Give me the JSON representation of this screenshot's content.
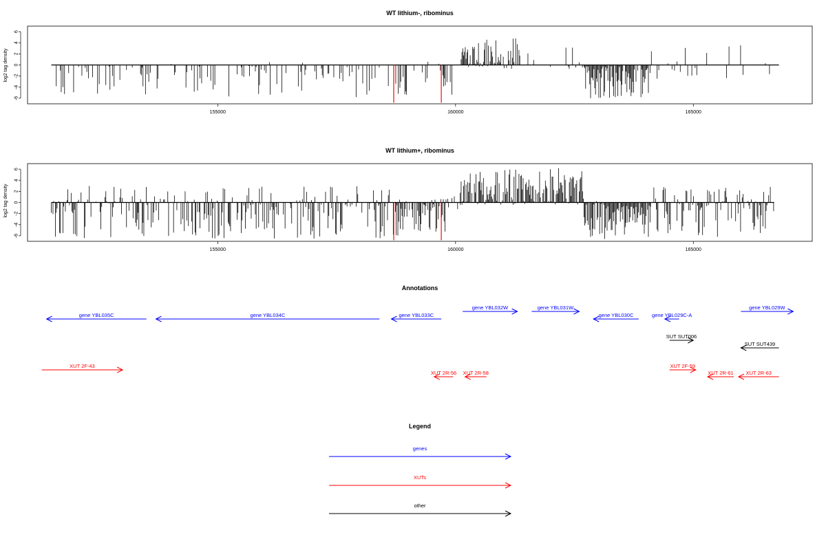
{
  "colors": {
    "genes": "#0000ff",
    "xuts": "#ff0000",
    "other": "#000000",
    "highlight": "#ff0000",
    "bars": "#000000"
  },
  "chart_data": [
    {
      "type": "bar",
      "title": "WT lithium-, ribominus",
      "ylabel": "log2 tag density",
      "xlim": [
        151000,
        167500
      ],
      "ylim": [
        -7,
        7
      ],
      "yticks": [
        6,
        4,
        2,
        0,
        -2,
        -4,
        -6
      ],
      "xticks": [
        155000,
        160000,
        165000
      ],
      "xtick_labels": [
        "155000",
        "160000",
        "165000"
      ],
      "highlight_positions": [
        158700,
        159700
      ],
      "highlight_values": [
        -6.8,
        -6.8
      ],
      "segments": [
        {
          "start": 151500,
          "end": 160000,
          "max": 0.6,
          "min": -5.8,
          "density": 0.28
        },
        {
          "start": 160100,
          "end": 161400,
          "max": 5.0,
          "min": -0.8,
          "density": 0.9
        },
        {
          "start": 161400,
          "end": 162700,
          "max": 3.6,
          "min": -1.2,
          "density": 0.2
        },
        {
          "start": 162700,
          "end": 164100,
          "max": 0.2,
          "min": -6.2,
          "density": 0.95
        },
        {
          "start": 164100,
          "end": 166800,
          "max": 3.6,
          "min": -3.0,
          "density": 0.18
        }
      ]
    },
    {
      "type": "bar",
      "title": "WT lithium+, ribominus",
      "ylabel": "log2 tag density",
      "xlim": [
        151000,
        167500
      ],
      "ylim": [
        -7,
        7
      ],
      "yticks": [
        6,
        4,
        2,
        0,
        -2,
        -4,
        -6
      ],
      "xticks": [
        155000,
        160000,
        165000
      ],
      "xtick_labels": [
        "155000",
        "160000",
        "165000"
      ],
      "highlight_positions": [
        158700,
        159700
      ],
      "highlight_values": [
        -6.8,
        -6.8
      ],
      "segments": [
        {
          "start": 151500,
          "end": 158700,
          "max": 3.0,
          "min": -6.5,
          "density": 0.55
        },
        {
          "start": 158700,
          "end": 159800,
          "max": 0.8,
          "min": -6.0,
          "density": 0.9
        },
        {
          "start": 159800,
          "end": 160100,
          "max": 2.5,
          "min": -1.5,
          "density": 0.3
        },
        {
          "start": 160100,
          "end": 162700,
          "max": 6.2,
          "min": -0.5,
          "density": 0.95
        },
        {
          "start": 162700,
          "end": 164100,
          "max": 0.3,
          "min": -6.6,
          "density": 0.98
        },
        {
          "start": 164100,
          "end": 166700,
          "max": 3.2,
          "min": -6.2,
          "density": 0.65
        }
      ]
    }
  ],
  "annotations": {
    "title": "Annotations",
    "items": [
      {
        "label": "gene YBL035C",
        "start": 151400,
        "end": 153500,
        "dir": "left",
        "row": 0,
        "kind": "genes"
      },
      {
        "label": "gene YBL034C",
        "start": 153700,
        "end": 158400,
        "dir": "left",
        "row": 0,
        "kind": "genes"
      },
      {
        "label": "gene YBL033C",
        "start": 158650,
        "end": 159700,
        "dir": "left",
        "row": 0,
        "kind": "genes"
      },
      {
        "label": "gene YBL032W",
        "start": 160150,
        "end": 161300,
        "dir": "right",
        "row": -1,
        "kind": "genes"
      },
      {
        "label": "gene YBL031W",
        "start": 161600,
        "end": 162600,
        "dir": "right",
        "row": -1,
        "kind": "genes"
      },
      {
        "label": "gene YBL030C",
        "start": 162900,
        "end": 163850,
        "dir": "left",
        "row": 0,
        "kind": "genes"
      },
      {
        "label": "gene YBL029C-A",
        "start": 164400,
        "end": 164700,
        "dir": "left",
        "row": 0,
        "kind": "genes"
      },
      {
        "label": "gene YBL029W",
        "start": 166000,
        "end": 167100,
        "dir": "right",
        "row": -1,
        "kind": "genes"
      },
      {
        "label": "SUT SUT006",
        "start": 164500,
        "end": 165000,
        "dir": "right",
        "row": 1,
        "kind": "other"
      },
      {
        "label": "SUT SUT439",
        "start": 166000,
        "end": 166800,
        "dir": "left",
        "row": 2,
        "kind": "other"
      },
      {
        "label": "XUT 2F-43",
        "start": 151300,
        "end": 153000,
        "dir": "right",
        "row": 3,
        "kind": "xuts"
      },
      {
        "label": "XUT 2F-59",
        "start": 164500,
        "end": 165050,
        "dir": "right",
        "row": 3,
        "kind": "xuts"
      },
      {
        "label": "XUT 2R-56",
        "start": 159550,
        "end": 159950,
        "dir": "left",
        "row": 4,
        "kind": "xuts"
      },
      {
        "label": "XUT 2R-58",
        "start": 160200,
        "end": 160650,
        "dir": "left",
        "row": 4,
        "kind": "xuts"
      },
      {
        "label": "XUT 2R-61",
        "start": 165300,
        "end": 165850,
        "dir": "left",
        "row": 4,
        "kind": "xuts"
      },
      {
        "label": "XUT 2R-63",
        "start": 165950,
        "end": 166800,
        "dir": "left",
        "row": 4,
        "kind": "xuts"
      }
    ]
  },
  "legend": {
    "title": "Legend",
    "items": [
      {
        "label": "genes",
        "kind": "genes"
      },
      {
        "label": "XUTs",
        "kind": "xuts"
      },
      {
        "label": "other",
        "kind": "other"
      }
    ]
  }
}
